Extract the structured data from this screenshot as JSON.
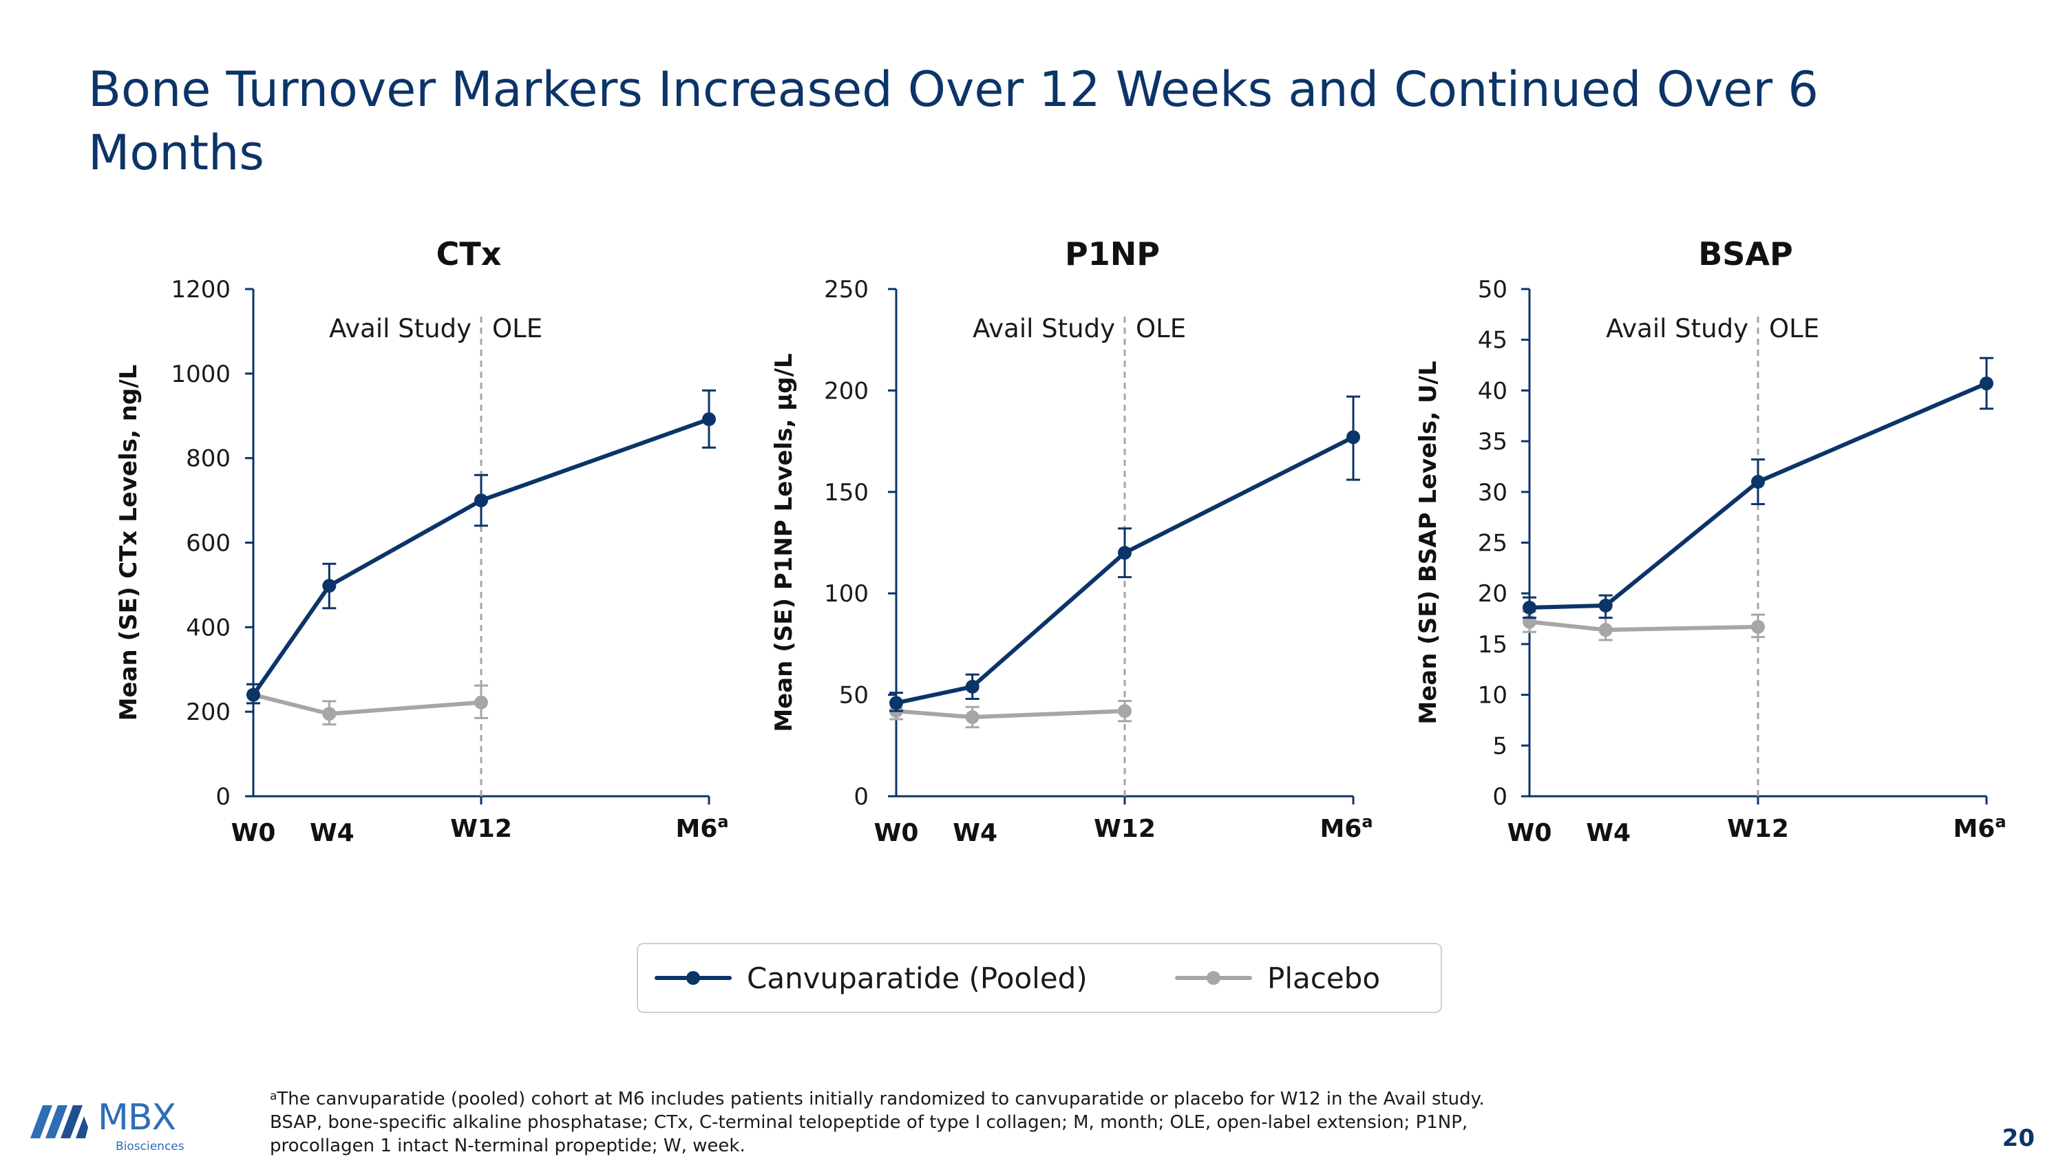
{
  "title": "Bone Turnover Markers Increased Over 12 Weeks and Continued Over 6 Months",
  "colors": {
    "canvu": "#0b3468",
    "placebo": "#a6a6a6",
    "title": "#0b3468",
    "divider": "#a6a6a6"
  },
  "x_categories": [
    "W0",
    "W4",
    "W12",
    "M6"
  ],
  "x_superscript": "a",
  "study_labels": {
    "left": "Avail Study",
    "right": "OLE"
  },
  "chart_data": [
    {
      "type": "line",
      "title": "CTx",
      "ylabel": "Mean (SE) CTx Levels, ng/L",
      "ylim": [
        0,
        1200
      ],
      "yticks": [
        0,
        200,
        400,
        600,
        800,
        1000,
        1200
      ],
      "x": [
        0,
        4,
        12,
        24
      ],
      "categories": [
        "W0",
        "W4",
        "W12",
        "M6"
      ],
      "series": [
        {
          "name": "Canvuparatide (Pooled)",
          "values": [
            240,
            498,
            700,
            892
          ],
          "err_low": [
            220,
            445,
            640,
            825
          ],
          "err_high": [
            265,
            550,
            760,
            960
          ]
        },
        {
          "name": "Placebo",
          "values": [
            240,
            195,
            222,
            null
          ],
          "err_low": [
            220,
            170,
            185,
            null
          ],
          "err_high": [
            265,
            225,
            262,
            null
          ]
        }
      ]
    },
    {
      "type": "line",
      "title": "P1NP",
      "ylabel": "Mean (SE) P1NP Levels, µg/L",
      "ylim": [
        0,
        250
      ],
      "yticks": [
        0,
        50,
        100,
        150,
        200,
        250
      ],
      "x": [
        0,
        4,
        12,
        24
      ],
      "categories": [
        "W0",
        "W4",
        "W12",
        "M6"
      ],
      "series": [
        {
          "name": "Canvuparatide (Pooled)",
          "values": [
            46,
            54,
            120,
            177
          ],
          "err_low": [
            42,
            48,
            108,
            156
          ],
          "err_high": [
            51,
            60,
            132,
            197
          ]
        },
        {
          "name": "Placebo",
          "values": [
            42,
            39,
            42,
            null
          ],
          "err_low": [
            38,
            34,
            37,
            null
          ],
          "err_high": [
            46,
            44,
            47,
            null
          ]
        }
      ]
    },
    {
      "type": "line",
      "title": "BSAP",
      "ylabel": "Mean (SE) BSAP Levels, U/L",
      "ylim": [
        0,
        50
      ],
      "yticks": [
        0,
        5,
        10,
        15,
        20,
        25,
        30,
        35,
        40,
        45,
        50
      ],
      "x": [
        0,
        4,
        12,
        24
      ],
      "categories": [
        "W0",
        "W4",
        "W12",
        "M6"
      ],
      "series": [
        {
          "name": "Canvuparatide (Pooled)",
          "values": [
            18.6,
            18.8,
            31.0,
            40.7
          ],
          "err_low": [
            17.6,
            17.6,
            28.8,
            38.2
          ],
          "err_high": [
            19.6,
            19.8,
            33.2,
            43.2
          ]
        },
        {
          "name": "Placebo",
          "values": [
            17.2,
            16.4,
            16.7,
            null
          ],
          "err_low": [
            16.2,
            15.4,
            15.7,
            null
          ],
          "err_high": [
            18.2,
            17.6,
            17.9,
            null
          ]
        }
      ]
    }
  ],
  "legend": [
    {
      "name": "Canvuparatide (Pooled)",
      "color": "#0b3468"
    },
    {
      "name": "Placebo",
      "color": "#a6a6a6"
    }
  ],
  "footnote": {
    "sup": "a",
    "line1": "The canvuparatide (pooled) cohort at M6 includes patients initially randomized to canvuparatide or placebo for W12 in the Avail study.",
    "line2": "BSAP, bone-specific alkaline phosphatase; CTx, C-terminal telopeptide of type I collagen; M, month; OLE, open-label extension; P1NP,",
    "line3": "procollagen 1 intact N-terminal propeptide; W, week."
  },
  "logo": {
    "text": "MBX",
    "subtext": "Biosciences"
  },
  "page_number": "20"
}
